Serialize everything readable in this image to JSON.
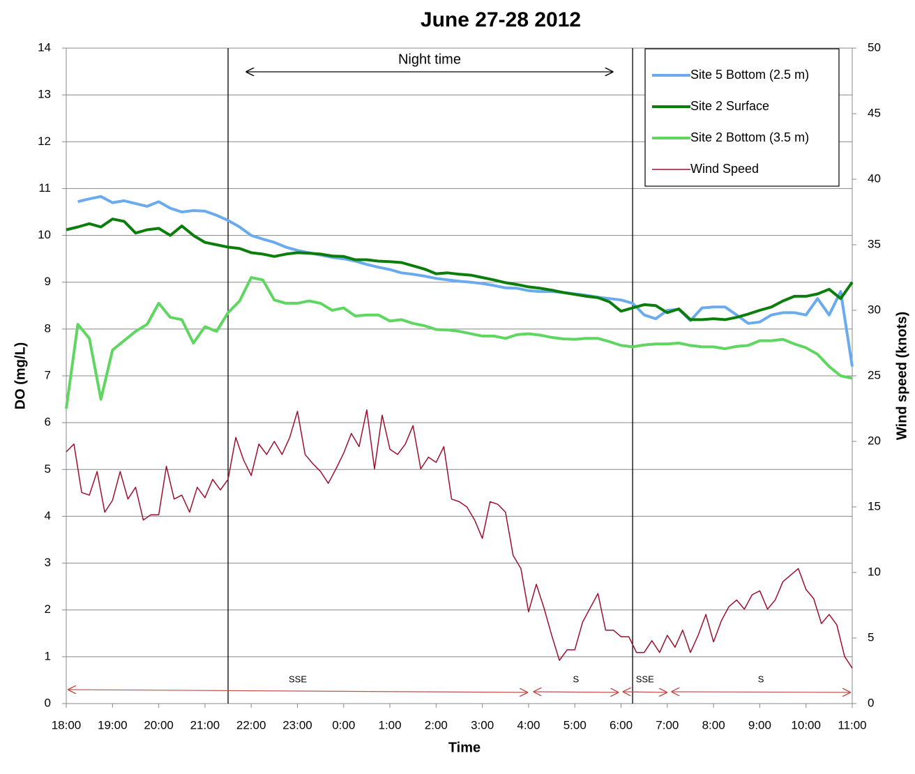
{
  "chart_data": {
    "type": "line",
    "title": "June 27-28 2012",
    "x_label": "Time",
    "y_label": "DO (mg/L)",
    "y2_label": "Wind speed (knots)",
    "xlim": [
      0,
      1020
    ],
    "xticks": [
      {
        "value": 0,
        "label": "18:00"
      },
      {
        "value": 60,
        "label": "19:00"
      },
      {
        "value": 120,
        "label": "20:00"
      },
      {
        "value": 180,
        "label": "21:00"
      },
      {
        "value": 240,
        "label": "22:00"
      },
      {
        "value": 300,
        "label": "23:00"
      },
      {
        "value": 360,
        "label": "0:00"
      },
      {
        "value": 420,
        "label": "1:00"
      },
      {
        "value": 480,
        "label": "2:00"
      },
      {
        "value": 540,
        "label": "3:00"
      },
      {
        "value": 600,
        "label": "4:00"
      },
      {
        "value": 660,
        "label": "5:00"
      },
      {
        "value": 720,
        "label": "6:00"
      },
      {
        "value": 780,
        "label": "7:00"
      },
      {
        "value": 840,
        "label": "8:00"
      },
      {
        "value": 900,
        "label": "9:00"
      },
      {
        "value": 960,
        "label": "10:00"
      },
      {
        "value": 1020,
        "label": "11:00"
      }
    ],
    "ylim": [
      0,
      14
    ],
    "yticks": [
      0,
      1,
      2,
      3,
      4,
      5,
      6,
      7,
      8,
      9,
      10,
      11,
      12,
      13,
      14
    ],
    "y2lim": [
      0,
      50
    ],
    "y2ticks": [
      0,
      5,
      10,
      15,
      20,
      25,
      30,
      35,
      40,
      45,
      50
    ],
    "grid": true,
    "legend": "top-right",
    "vertical_lines": [
      210,
      735
    ],
    "night_time": {
      "text": "Night time",
      "x": [
        233,
        710
      ]
    },
    "wind_directions": [
      {
        "label": "SSE",
        "x": [
          2,
          599
        ]
      },
      {
        "label": "S",
        "x": [
          606,
          717
        ]
      },
      {
        "label": "SSE",
        "x": [
          722,
          780
        ]
      },
      {
        "label": "S",
        "x": [
          785,
          1018
        ]
      }
    ],
    "series": [
      {
        "name": "Site 5 Bottom (2.5 m)",
        "color": "#6aaaee",
        "width": 4,
        "x": [
          0,
          15,
          30,
          45,
          60,
          75,
          90,
          105,
          120,
          135,
          150,
          165,
          180,
          195,
          210,
          225,
          240,
          255,
          270,
          285,
          300,
          315,
          330,
          345,
          360,
          375,
          390,
          405,
          420,
          435,
          450,
          465,
          480,
          495,
          510,
          525,
          540,
          555,
          570,
          585,
          600,
          615,
          630,
          645,
          660,
          675,
          690,
          705,
          720,
          735,
          750,
          765,
          780,
          795,
          810,
          825,
          840,
          855,
          870,
          885,
          900,
          915,
          930,
          945,
          960,
          975,
          990,
          1005,
          1020
        ],
        "values": [
          null,
          10.72,
          10.78,
          10.83,
          10.7,
          10.74,
          10.68,
          10.62,
          10.72,
          10.58,
          10.5,
          10.53,
          10.52,
          10.43,
          10.32,
          10.18,
          10.0,
          9.92,
          9.85,
          9.75,
          9.68,
          9.63,
          9.58,
          9.53,
          9.5,
          9.45,
          9.38,
          9.32,
          9.27,
          9.2,
          9.17,
          9.13,
          9.08,
          9.05,
          9.02,
          9.0,
          8.97,
          8.93,
          8.88,
          8.87,
          8.82,
          8.8,
          8.8,
          8.78,
          8.75,
          8.72,
          8.68,
          8.65,
          8.62,
          8.55,
          8.3,
          8.22,
          8.4,
          8.42,
          8.18,
          8.45,
          8.47,
          8.47,
          8.3,
          8.12,
          8.15,
          8.3,
          8.35,
          8.35,
          8.3,
          8.65,
          8.3,
          8.8,
          7.2
        ]
      },
      {
        "name": "Site 2 Surface",
        "color": "#0b7d0b",
        "width": 4,
        "x": [
          0,
          15,
          30,
          45,
          60,
          75,
          90,
          105,
          120,
          135,
          150,
          165,
          180,
          195,
          210,
          225,
          240,
          255,
          270,
          285,
          300,
          315,
          330,
          345,
          360,
          375,
          390,
          405,
          420,
          435,
          450,
          465,
          480,
          495,
          510,
          525,
          540,
          555,
          570,
          585,
          600,
          615,
          630,
          645,
          660,
          675,
          690,
          705,
          720,
          735,
          750,
          765,
          780,
          795,
          810,
          825,
          840,
          855,
          870,
          885,
          900,
          915,
          930,
          945,
          960,
          975,
          990,
          1005,
          1020
        ],
        "values": [
          10.12,
          10.18,
          10.25,
          10.18,
          10.35,
          10.3,
          10.05,
          10.12,
          10.15,
          10.0,
          10.2,
          10.0,
          9.85,
          9.8,
          9.75,
          9.72,
          9.63,
          9.6,
          9.55,
          9.6,
          9.63,
          9.62,
          9.6,
          9.56,
          9.55,
          9.48,
          9.48,
          9.45,
          9.44,
          9.42,
          9.35,
          9.28,
          9.18,
          9.2,
          9.17,
          9.15,
          9.1,
          9.05,
          8.99,
          8.95,
          8.9,
          8.87,
          8.83,
          8.78,
          8.74,
          8.7,
          8.67,
          8.58,
          8.38,
          8.45,
          8.52,
          8.5,
          8.35,
          8.43,
          8.2,
          8.2,
          8.22,
          8.2,
          8.25,
          8.32,
          8.4,
          8.47,
          8.6,
          8.7,
          8.7,
          8.75,
          8.85,
          8.65,
          9.0
        ]
      },
      {
        "name": "Site 2 Bottom (3.5 m)",
        "color": "#5fd65f",
        "width": 4,
        "x": [
          0,
          15,
          30,
          45,
          60,
          75,
          90,
          105,
          120,
          135,
          150,
          165,
          180,
          195,
          210,
          225,
          240,
          255,
          270,
          285,
          300,
          315,
          330,
          345,
          360,
          375,
          390,
          405,
          420,
          435,
          450,
          465,
          480,
          495,
          510,
          525,
          540,
          555,
          570,
          585,
          600,
          615,
          630,
          645,
          660,
          675,
          690,
          705,
          720,
          735,
          750,
          765,
          780,
          795,
          810,
          825,
          840,
          855,
          870,
          885,
          900,
          915,
          930,
          945,
          960,
          975,
          990,
          1005,
          1020
        ],
        "values": [
          6.3,
          8.1,
          7.8,
          6.5,
          7.55,
          7.75,
          7.95,
          8.1,
          8.55,
          8.25,
          8.2,
          7.7,
          8.05,
          7.95,
          8.35,
          8.6,
          9.1,
          9.05,
          8.62,
          8.55,
          8.55,
          8.6,
          8.55,
          8.4,
          8.45,
          8.28,
          8.3,
          8.3,
          8.17,
          8.2,
          8.12,
          8.07,
          7.99,
          7.98,
          7.95,
          7.9,
          7.85,
          7.85,
          7.8,
          7.88,
          7.9,
          7.87,
          7.82,
          7.79,
          7.78,
          7.8,
          7.8,
          7.73,
          7.65,
          7.62,
          7.66,
          7.68,
          7.68,
          7.7,
          7.65,
          7.62,
          7.62,
          7.58,
          7.63,
          7.65,
          7.75,
          7.75,
          7.78,
          7.68,
          7.6,
          7.46,
          7.2,
          7.0,
          6.95
        ]
      },
      {
        "name": "Wind Speed",
        "color": "#9e0f2e",
        "width": 1.5,
        "axis": "y2",
        "x": [
          0,
          10,
          20,
          30,
          40,
          50,
          60,
          70,
          80,
          90,
          100,
          110,
          120,
          130,
          140,
          150,
          160,
          170,
          180,
          190,
          200,
          210,
          220,
          230,
          240,
          250,
          260,
          270,
          280,
          290,
          300,
          310,
          320,
          330,
          340,
          350,
          360,
          370,
          380,
          390,
          400,
          410,
          420,
          430,
          440,
          450,
          460,
          470,
          480,
          490,
          500,
          510,
          520,
          530,
          540,
          550,
          560,
          570,
          580,
          590,
          600,
          610,
          620,
          630,
          640,
          650,
          660,
          670,
          680,
          690,
          700,
          710,
          720,
          730,
          740,
          750,
          760,
          770,
          780,
          790,
          800,
          810,
          820,
          830,
          840,
          850,
          860,
          870,
          880,
          890,
          900,
          910,
          920,
          930,
          940,
          950,
          960,
          970,
          980,
          990,
          1000,
          1010,
          1020
        ],
        "values": [
          19.2,
          19.8,
          16.1,
          15.9,
          17.7,
          14.6,
          15.5,
          17.7,
          15.6,
          16.5,
          14.0,
          14.4,
          14.4,
          18.1,
          15.6,
          15.9,
          14.6,
          16.5,
          15.7,
          17.1,
          16.3,
          17.1,
          20.3,
          18.6,
          17.4,
          19.8,
          19.0,
          20.0,
          19.0,
          20.3,
          22.3,
          19.0,
          18.3,
          17.7,
          16.8,
          17.9,
          19.1,
          20.6,
          19.6,
          22.4,
          17.9,
          22.0,
          19.4,
          19.0,
          19.8,
          21.2,
          17.9,
          18.8,
          18.4,
          19.6,
          15.6,
          15.4,
          15.0,
          14.0,
          12.6,
          15.4,
          15.2,
          14.6,
          11.3,
          10.3,
          7.0,
          9.1,
          7.3,
          5.2,
          3.3,
          4.1,
          4.1,
          6.2,
          7.3,
          8.4,
          5.6,
          5.6,
          5.1,
          5.1,
          3.9,
          3.9,
          4.8,
          3.9,
          5.2,
          4.3,
          5.6,
          3.9,
          5.2,
          6.8,
          4.7,
          6.3,
          7.4,
          7.9,
          7.2,
          8.3,
          8.6,
          7.2,
          7.9,
          9.3,
          9.8,
          10.3,
          8.7,
          8.0,
          6.1,
          6.8,
          6.0,
          3.6,
          2.7
        ]
      }
    ]
  }
}
